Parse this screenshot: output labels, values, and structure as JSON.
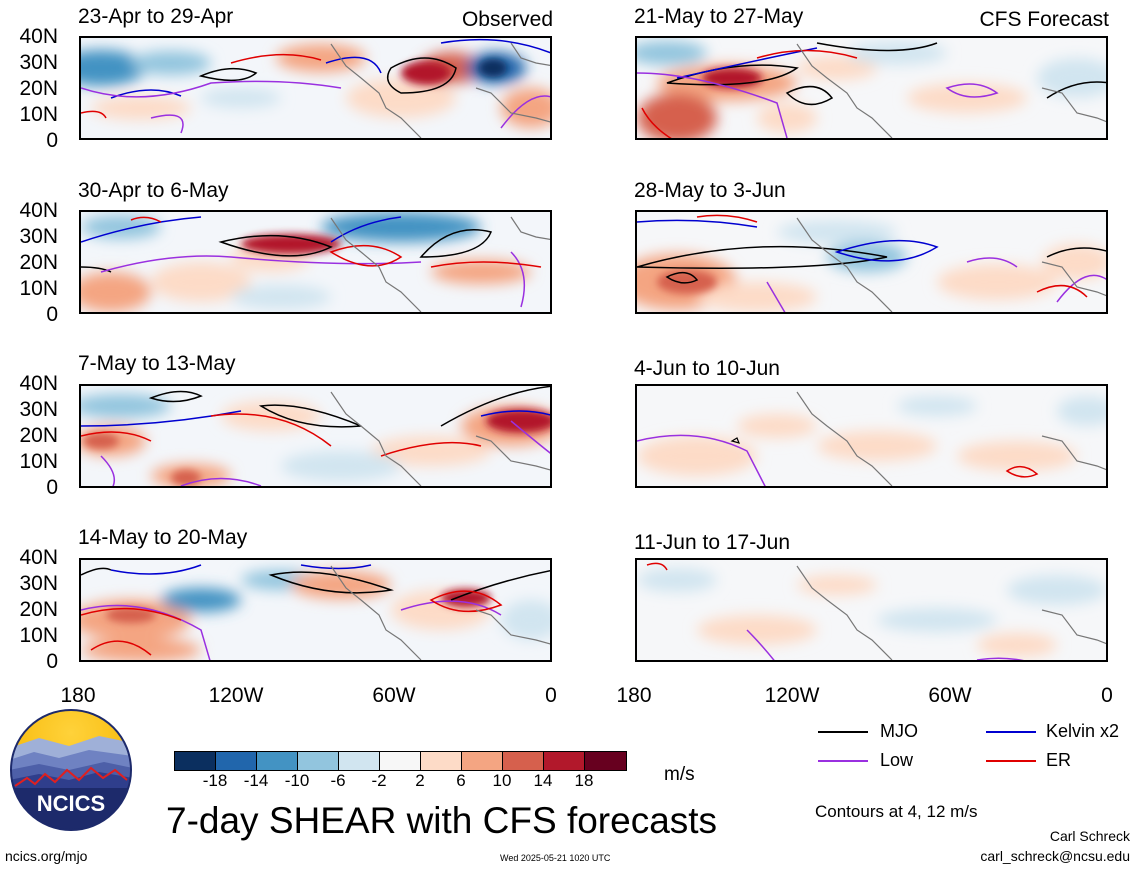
{
  "left_titles": [
    "23-Apr to 29-Apr",
    "30-Apr to 6-May",
    "7-May to 13-May",
    "14-May to 20-May"
  ],
  "right_titles": [
    "21-May to 27-May",
    "28-May to 3-Jun",
    "4-Jun to 10-Jun",
    "11-Jun to 17-Jun"
  ],
  "label_observed": "Observed",
  "label_forecast": "CFS Forecast",
  "lat_labels": [
    "40N",
    "30N",
    "20N",
    "10N",
    "0"
  ],
  "lon_labels": [
    "180",
    "120W",
    "60W",
    "0"
  ],
  "colorbar": {
    "ticks": [
      "-18",
      "-14",
      "-10",
      "-6",
      "-2",
      "2",
      "6",
      "10",
      "14",
      "18"
    ],
    "colors": [
      "#0b2f5f",
      "#2166ac",
      "#4393c3",
      "#92c5de",
      "#d1e5f0",
      "#f7f7f7",
      "#fddbc7",
      "#f4a582",
      "#d6604d",
      "#b2182b",
      "#67001f"
    ],
    "units": "m/s"
  },
  "legend": {
    "mjo": "MJO",
    "kelvin": "Kelvin x2",
    "low": "Low",
    "er": "ER",
    "mjo_color": "#000000",
    "kelvin_color": "#0000d0",
    "low_color": "#9a30e0",
    "er_color": "#e00000"
  },
  "contours_note": "Contours at 4, 12 m/s",
  "main_title": "7-day SHEAR with CFS forecasts",
  "logo_text": "NCICS",
  "website": "ncics.org/mjo",
  "timestamp": "Wed 2025-05-21 1020 UTC",
  "author": "Carl Schreck",
  "email": "carl_schreck@ncsu.edu"
}
